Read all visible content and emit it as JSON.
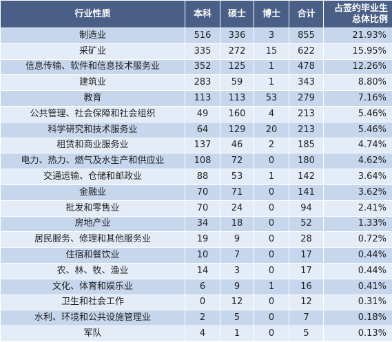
{
  "table": {
    "headers": {
      "industry": "行业性质",
      "bachelor": "本科",
      "master": "硕士",
      "doctor": "博士",
      "total": "合计",
      "share_line1": "占签约毕业生",
      "share_line2": "总体比例"
    },
    "rows": [
      {
        "industry": "制造业",
        "bachelor": "516",
        "master": "336",
        "doctor": "3",
        "total": "855",
        "share": "21.93%"
      },
      {
        "industry": "采矿业",
        "bachelor": "335",
        "master": "272",
        "doctor": "15",
        "total": "622",
        "share": "15.95%"
      },
      {
        "industry": "信息传输、软件和信息技术服务业",
        "bachelor": "352",
        "master": "125",
        "doctor": "1",
        "total": "478",
        "share": "12.26%"
      },
      {
        "industry": "建筑业",
        "bachelor": "283",
        "master": "59",
        "doctor": "1",
        "total": "343",
        "share": "8.80%"
      },
      {
        "industry": "教育",
        "bachelor": "113",
        "master": "113",
        "doctor": "53",
        "total": "279",
        "share": "7.16%"
      },
      {
        "industry": "公共管理、社会保障和社会组织",
        "bachelor": "49",
        "master": "160",
        "doctor": "4",
        "total": "213",
        "share": "5.46%"
      },
      {
        "industry": "科学研究和技术服务业",
        "bachelor": "64",
        "master": "129",
        "doctor": "20",
        "total": "213",
        "share": "5.46%"
      },
      {
        "industry": "租赁和商业服务业",
        "bachelor": "137",
        "master": "46",
        "doctor": "2",
        "total": "185",
        "share": "4.74%"
      },
      {
        "industry": "电力、热力、燃气及水生产和供应业",
        "bachelor": "108",
        "master": "72",
        "doctor": "0",
        "total": "180",
        "share": "4.62%"
      },
      {
        "industry": "交通运输、仓储和邮政业",
        "bachelor": "88",
        "master": "53",
        "doctor": "1",
        "total": "142",
        "share": "3.64%"
      },
      {
        "industry": "金融业",
        "bachelor": "70",
        "master": "71",
        "doctor": "0",
        "total": "141",
        "share": "3.62%"
      },
      {
        "industry": "批发和零售业",
        "bachelor": "70",
        "master": "24",
        "doctor": "0",
        "total": "94",
        "share": "2.41%"
      },
      {
        "industry": "房地产业",
        "bachelor": "34",
        "master": "18",
        "doctor": "0",
        "total": "52",
        "share": "1.33%"
      },
      {
        "industry": "居民服务、修理和其他服务业",
        "bachelor": "19",
        "master": "9",
        "doctor": "0",
        "total": "28",
        "share": "0.72%"
      },
      {
        "industry": "住宿和餐饮业",
        "bachelor": "10",
        "master": "7",
        "doctor": "0",
        "total": "17",
        "share": "0.44%"
      },
      {
        "industry": "农、林、牧、渔业",
        "bachelor": "14",
        "master": "3",
        "doctor": "0",
        "total": "17",
        "share": "0.44%"
      },
      {
        "industry": "文化、体育和娱乐业",
        "bachelor": "6",
        "master": "9",
        "doctor": "1",
        "total": "16",
        "share": "0.41%"
      },
      {
        "industry": "卫生和社会工作",
        "bachelor": "0",
        "master": "12",
        "doctor": "0",
        "total": "12",
        "share": "0.31%"
      },
      {
        "industry": "水利、环境和公共设施管理业",
        "bachelor": "2",
        "master": "5",
        "doctor": "0",
        "total": "7",
        "share": "0.18%"
      },
      {
        "industry": "军队",
        "bachelor": "4",
        "master": "1",
        "doctor": "0",
        "total": "5",
        "share": "0.13%"
      }
    ]
  },
  "colors": {
    "header_background": "#4a5f86",
    "row_odd": "#c6d6ed",
    "row_even": "#e4ecf7"
  }
}
